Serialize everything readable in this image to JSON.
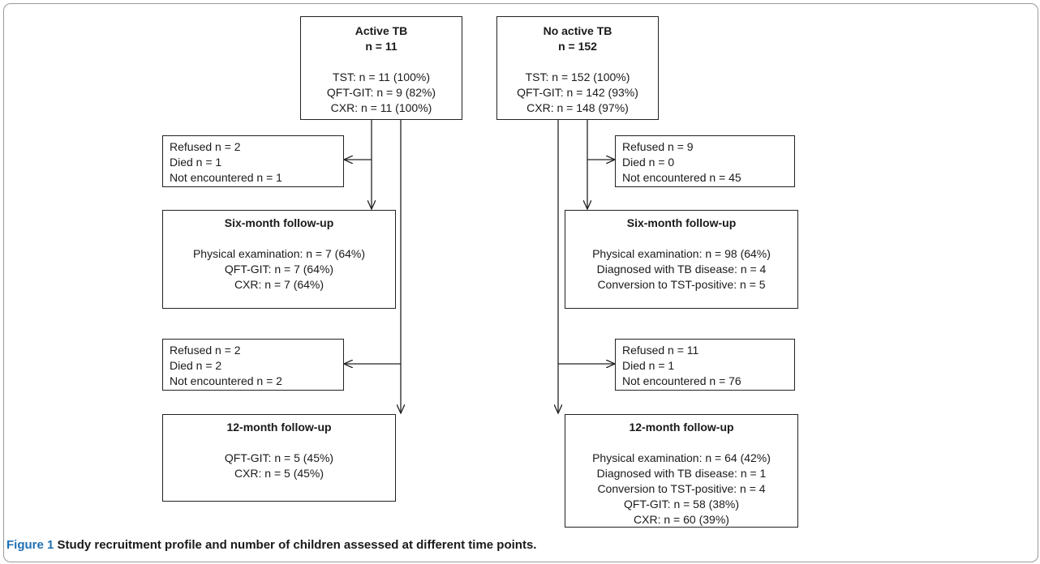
{
  "caption": {
    "label": "Figure 1",
    "text": "Study recruitment profile and number of children assessed at different time points."
  },
  "active": {
    "title": "Active TB",
    "n": "n = 11",
    "lines": [
      "TST: n = 11 (100%)",
      "QFT-GIT: n = 9 (82%)",
      "CXR: n = 11 (100%)"
    ],
    "loss6": [
      "Refused n = 2",
      "Died n = 1",
      "Not encountered n = 1"
    ],
    "six_title": "Six-month follow-up",
    "six_lines": [
      "Physical examination: n = 7 (64%)",
      "QFT-GIT: n = 7 (64%)",
      "CXR: n = 7 (64%)"
    ],
    "loss12": [
      "Refused n = 2",
      "Died n = 2",
      "Not encountered n = 2"
    ],
    "twelve_title": "12-month follow-up",
    "twelve_lines": [
      "QFT-GIT: n = 5 (45%)",
      "CXR: n = 5 (45%)"
    ]
  },
  "noactive": {
    "title": "No active TB",
    "n": "n = 152",
    "lines": [
      "TST: n = 152 (100%)",
      "QFT-GIT: n = 142 (93%)",
      "CXR: n = 148 (97%)"
    ],
    "loss6": [
      "Refused n = 9",
      "Died n = 0",
      "Not encountered n = 45"
    ],
    "six_title": "Six-month follow-up",
    "six_lines": [
      "Physical examination: n = 98 (64%)",
      "Diagnosed with TB disease: n = 4",
      "Conversion to TST-positive: n = 5"
    ],
    "loss12": [
      "Refused n = 11",
      "Died n = 1",
      "Not encountered n = 76"
    ],
    "twelve_title": "12-month follow-up",
    "twelve_lines": [
      "Physical examination: n = 64 (42%)",
      "Diagnosed with TB disease: n = 1",
      "Conversion to TST-positive: n = 4",
      "QFT-GIT: n = 58 (38%)",
      "CXR: n = 60 (39%)"
    ]
  }
}
